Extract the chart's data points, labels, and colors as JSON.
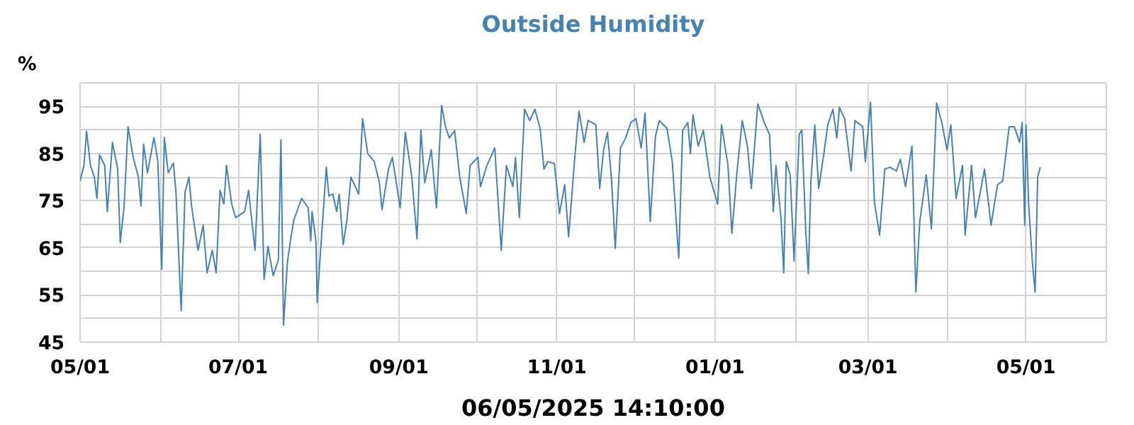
{
  "chart_data": {
    "type": "line",
    "title": "Outside Humidity",
    "xlabel": "06/05/2025 14:10:00",
    "ylabel": "%",
    "xlim": [
      "2024-05-01",
      "2025-06-01"
    ],
    "xticks": [
      {
        "value": "2024-05-01",
        "label": "05/01"
      },
      {
        "value": "2024-06-01",
        "label": null
      },
      {
        "value": "2024-07-01",
        "label": "07/01"
      },
      {
        "value": "2024-08-01",
        "label": null
      },
      {
        "value": "2024-09-01",
        "label": "09/01"
      },
      {
        "value": "2024-10-01",
        "label": null
      },
      {
        "value": "2024-11-01",
        "label": "11/01"
      },
      {
        "value": "2024-12-01",
        "label": null
      },
      {
        "value": "2025-01-01",
        "label": "01/01"
      },
      {
        "value": "2025-02-01",
        "label": null
      },
      {
        "value": "2025-03-01",
        "label": "03/01"
      },
      {
        "value": "2025-04-01",
        "label": null
      },
      {
        "value": "2025-05-01",
        "label": "05/01"
      }
    ],
    "ylim": [
      45,
      100
    ],
    "yticks": [
      45,
      {
        "value": 50,
        "label": null
      },
      55,
      {
        "value": 60,
        "label": null
      },
      65,
      {
        "value": 70,
        "label": null
      },
      75,
      {
        "value": 80,
        "label": null
      },
      85,
      {
        "value": 90,
        "label": null
      },
      95,
      {
        "value": 100,
        "label": null
      }
    ],
    "grid": true,
    "marker": "none",
    "line_style": "solid",
    "series": [
      {
        "color": "#4682b4",
        "x": [
          "2024-05-01T00:00",
          "2024-05-02T12:00",
          "2024-05-03T12:00",
          "2024-05-05T00:00",
          "2024-05-06T12:00",
          "2024-05-07T12:00",
          "2024-05-08T12:00",
          "2024-05-10T12:00",
          "2024-05-11T12:00",
          "2024-05-13T12:00",
          "2024-05-15T12:00",
          "2024-05-16T12:00",
          "2024-05-18T00:00",
          "2024-05-19T12:00",
          "2024-05-21T12:00",
          "2024-05-23T12:00",
          "2024-05-24T12:00",
          "2024-05-25T12:00",
          "2024-05-27T00:00",
          "2024-05-29T12:00",
          "2024-05-31T00:00",
          "2024-06-01T12:00",
          "2024-06-02T12:00",
          "2024-06-04T00:00",
          "2024-06-06T00:00",
          "2024-06-07T00:00",
          "2024-06-09T00:00",
          "2024-06-10T12:00",
          "2024-06-12T00:00",
          "2024-06-13T00:00",
          "2024-06-15T12:00",
          "2024-06-17T12:00",
          "2024-06-19T00:00",
          "2024-06-21T00:00",
          "2024-06-22T12:00",
          "2024-06-24T00:00",
          "2024-06-25T12:00",
          "2024-06-26T12:00",
          "2024-06-28T12:00",
          "2024-06-30T00:00",
          "2024-07-03T12:00",
          "2024-07-05T00:00",
          "2024-07-07T12:00",
          "2024-07-09T12:00",
          "2024-07-11T00:00",
          "2024-07-12T12:00",
          "2024-07-14T12:00",
          "2024-07-16T12:00",
          "2024-07-17T12:00",
          "2024-07-18T12:00",
          "2024-07-20T00:00",
          "2024-07-21T12:00",
          "2024-07-22T12:00",
          "2024-07-25T12:00",
          "2024-07-28T00:00",
          "2024-07-29T00:00",
          "2024-07-29T12:00",
          "2024-07-31T00:00",
          "2024-07-31T12:00",
          "2024-08-01T12:00",
          "2024-08-04T00:00",
          "2024-08-05T00:00",
          "2024-08-06T12:00",
          "2024-08-08T00:00",
          "2024-08-09T00:00",
          "2024-08-10T12:00",
          "2024-08-12T00:00",
          "2024-08-13T12:00",
          "2024-08-16T12:00",
          "2024-08-18T00:00",
          "2024-08-20T00:00",
          "2024-08-22T12:00",
          "2024-08-24T12:00",
          "2024-08-25T12:00",
          "2024-08-28T00:00",
          "2024-08-29T12:00",
          "2024-09-01T12:00",
          "2024-09-03T12:00",
          "2024-09-06T00:00",
          "2024-09-08T00:00",
          "2024-09-09T12:00",
          "2024-09-11T00:00",
          "2024-09-13T12:00",
          "2024-09-15T12:00",
          "2024-09-17T12:00",
          "2024-09-19T00:00",
          "2024-09-20T12:00",
          "2024-09-22T12:00",
          "2024-09-24T12:00",
          "2024-09-27T00:00",
          "2024-09-28T12:00",
          "2024-10-01T12:00",
          "2024-10-02T12:00",
          "2024-10-05T00:00",
          "2024-10-08T00:00",
          "2024-10-10T12:00",
          "2024-10-12T12:00",
          "2024-10-15T00:00",
          "2024-10-16T00:00",
          "2024-10-17T12:00",
          "2024-10-19T12:00",
          "2024-10-21T12:00",
          "2024-10-23T12:00",
          "2024-10-25T12:00",
          "2024-10-27T00:00",
          "2024-10-28T12:00",
          "2024-10-31T00:00",
          "2024-11-02T00:00",
          "2024-11-04T00:00",
          "2024-11-05T12:00",
          "2024-11-08T00:00",
          "2024-11-09T12:00",
          "2024-11-11T12:00",
          "2024-11-13T00:00",
          "2024-11-16T00:00",
          "2024-11-17T12:00",
          "2024-11-19T00:00",
          "2024-11-20T12:00",
          "2024-11-22T00:00",
          "2024-11-23T12:00",
          "2024-11-25T12:00",
          "2024-11-27T12:00",
          "2024-11-29T12:00",
          "2024-12-01T12:00",
          "2024-12-03T12:00",
          "2024-12-05T00:00",
          "2024-12-07T00:00",
          "2024-12-09T00:00",
          "2024-12-10T12:00",
          "2024-12-13T12:00",
          "2024-12-15T12:00",
          "2024-12-18T00:00",
          "2024-12-19T12:00",
          "2024-12-21T12:00",
          "2024-12-22T12:00",
          "2024-12-23T12:00",
          "2024-12-25T12:00",
          "2024-12-27T12:00",
          "2024-12-30T00:00",
          "2025-01-02T00:00",
          "2025-01-03T12:00",
          "2025-01-06T00:00",
          "2025-01-07T12:00",
          "2025-01-09T12:00",
          "2025-01-11T12:00",
          "2025-01-13T12:00",
          "2025-01-15T00:00",
          "2025-01-17T12:00",
          "2025-01-20T00:00",
          "2025-01-22T00:00",
          "2025-01-23T12:00",
          "2025-01-24T12:00",
          "2025-01-26T12:00",
          "2025-01-27T12:00",
          "2025-01-28T12:00",
          "2025-01-30T00:00",
          "2025-01-31T12:00",
          "2025-02-02T12:00",
          "2025-02-03T12:00",
          "2025-02-05T00:00",
          "2025-02-06T00:00",
          "2025-02-07T00:00",
          "2025-02-08T12:00",
          "2025-02-10T00:00",
          "2025-02-12T00:00",
          "2025-02-13T12:00",
          "2025-02-15T12:00",
          "2025-02-17T00:00",
          "2025-02-18T00:00",
          "2025-02-20T00:00",
          "2025-02-22T12:00",
          "2025-02-24T00:00",
          "2025-02-27T00:00",
          "2025-02-28T00:00",
          "2025-03-02T00:00",
          "2025-03-03T12:00",
          "2025-03-05T12:00",
          "2025-03-07T12:00",
          "2025-03-09T12:00",
          "2025-03-12T00:00",
          "2025-03-13T12:00",
          "2025-03-15T12:00",
          "2025-03-18T00:00",
          "2025-03-19T12:00",
          "2025-03-21T00:00",
          "2025-03-23T12:00",
          "2025-03-25T12:00",
          "2025-03-27T12:00",
          "2025-03-29T12:00",
          "2025-03-31T12:00",
          "2025-04-02T00:00",
          "2025-04-04T00:00",
          "2025-04-06T12:00",
          "2025-04-07T12:00",
          "2025-04-10T00:00",
          "2025-04-11T12:00",
          "2025-04-15T00:00",
          "2025-04-17T12:00",
          "2025-04-20T00:00",
          "2025-04-22T00:00",
          "2025-04-24T12:00",
          "2025-04-26T12:00",
          "2025-04-28T12:00",
          "2025-04-29T12:00",
          "2025-04-30T12:00",
          "2025-05-01T00:00",
          "2025-05-02T00:00",
          "2025-05-03T12:00",
          "2025-05-04T12:00",
          "2025-05-05T12:00",
          "2025-05-06T12:00"
        ],
        "values": [
          79.2,
          82.5,
          89.7,
          82.5,
          80,
          75.5,
          84.7,
          82.5,
          72.7,
          87.4,
          81.7,
          66.1,
          73.9,
          90.7,
          84.2,
          80,
          73.9,
          87,
          80.9,
          88.4,
          83.3,
          60.4,
          88.4,
          80.9,
          83,
          76.8,
          51.7,
          76.8,
          80,
          73.9,
          64.5,
          69.8,
          59.7,
          64.5,
          59.7,
          77.2,
          74.3,
          82.5,
          74.3,
          71.4,
          72.7,
          77.2,
          64.5,
          89.1,
          58.3,
          65.3,
          59.1,
          62.4,
          87.9,
          48.6,
          62,
          67.7,
          71,
          75.5,
          73.5,
          66.5,
          72.7,
          66.5,
          53.4,
          62,
          82.1,
          76,
          76.4,
          72.7,
          76.4,
          65.7,
          71,
          80,
          76.4,
          92.4,
          85,
          83.3,
          78.8,
          73.1,
          81.7,
          84.2,
          73.5,
          89.5,
          80,
          66.9,
          90,
          78.8,
          85.8,
          73.5,
          95.2,
          90.7,
          88.3,
          89.9,
          80,
          72.3,
          82.5,
          84.2,
          78,
          82.5,
          86.2,
          64.5,
          82.5,
          78,
          84.2,
          71.4,
          94.4,
          92,
          94.4,
          90.3,
          81.7,
          83.3,
          82.9,
          72.3,
          78.4,
          67.3,
          85,
          94,
          87.4,
          92,
          91.1,
          77.6,
          85.8,
          89.5,
          80,
          64.9,
          86.2,
          88.3,
          91.6,
          92.4,
          86.2,
          93.6,
          70.6,
          88.7,
          92,
          90.3,
          83.3,
          62.8,
          89.9,
          91.6,
          85,
          93.2,
          86.6,
          89.9,
          80,
          74.3,
          91.1,
          82.5,
          68.1,
          81.3,
          92,
          86.6,
          77.6,
          95.5,
          91.6,
          89.1,
          72.7,
          82.5,
          71,
          59.7,
          83.3,
          80.5,
          62.2,
          89.1,
          90,
          68.6,
          59.5,
          79.2,
          91.1,
          77.6,
          85,
          91.1,
          94.4,
          88.3,
          94.8,
          92.4,
          81.3,
          92,
          90.7,
          83.3,
          95.9,
          74.7,
          67.7,
          81.7,
          82.1,
          81.3,
          83.8,
          78,
          86.6,
          55.6,
          70.6,
          80.5,
          69,
          95.7,
          91.6,
          85.8,
          91.1,
          75.5,
          82.5,
          67.7,
          82.5,
          71.4,
          81.7,
          69.8,
          78.4,
          79.2,
          90.7,
          90.7,
          87.4,
          91.6,
          69.8,
          91.1,
          74.3,
          61.6,
          55.6,
          80,
          82.1
        ]
      }
    ]
  }
}
